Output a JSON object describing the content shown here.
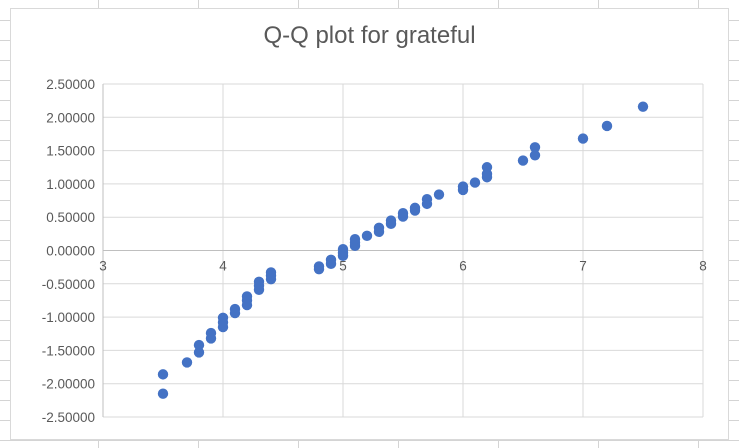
{
  "chart_data": {
    "type": "scatter",
    "title": "Q-Q plot for grateful",
    "xlabel": "",
    "ylabel": "",
    "xlim": [
      3,
      8
    ],
    "ylim": [
      -2.5,
      2.5
    ],
    "x_ticks": [
      3,
      4,
      5,
      6,
      7,
      8
    ],
    "y_ticks": [
      2.5,
      2.0,
      1.5,
      1.0,
      0.5,
      0.0,
      -0.5,
      -1.0,
      -1.5,
      -2.0,
      -2.5
    ],
    "y_tick_labels": [
      "2.50000",
      "2.00000",
      "1.50000",
      "1.00000",
      "0.50000",
      "0.00000",
      "-0.50000",
      "-1.00000",
      "-1.50000",
      "-2.00000",
      "-2.50000"
    ],
    "grid": "vertical and horizontal major gridlines",
    "legend": "none",
    "marker_color": "#4472c4",
    "series": [
      {
        "x": [
          3.5,
          3.5,
          3.7,
          3.8,
          3.8,
          3.9,
          3.9,
          4.0,
          4.0,
          4.0,
          4.1,
          4.1,
          4.2,
          4.2,
          4.2,
          4.3,
          4.3,
          4.3,
          4.4,
          4.4,
          4.4,
          4.8,
          4.8,
          4.9,
          4.9,
          5.0,
          5.0,
          5.0,
          5.1,
          5.1,
          5.1,
          5.2,
          5.3,
          5.3,
          5.4,
          5.4,
          5.5,
          5.5,
          5.6,
          5.6,
          5.7,
          5.7,
          5.8,
          6.0,
          6.0,
          6.1,
          6.2,
          6.2,
          6.2,
          6.5,
          6.6,
          6.6,
          7.0,
          7.2,
          7.5
        ],
        "y": [
          -2.15,
          -1.86,
          -1.68,
          -1.53,
          -1.42,
          -1.32,
          -1.24,
          -1.15,
          -1.08,
          -1.01,
          -0.94,
          -0.88,
          -0.82,
          -0.75,
          -0.69,
          -0.59,
          -0.53,
          -0.47,
          -0.43,
          -0.38,
          -0.33,
          -0.28,
          -0.24,
          -0.2,
          -0.14,
          -0.08,
          -0.03,
          0.02,
          0.07,
          0.12,
          0.17,
          0.22,
          0.28,
          0.34,
          0.4,
          0.45,
          0.51,
          0.56,
          0.6,
          0.64,
          0.7,
          0.77,
          0.84,
          0.91,
          0.96,
          1.02,
          1.1,
          1.15,
          1.25,
          1.35,
          1.43,
          1.55,
          1.68,
          1.87,
          2.16
        ]
      }
    ]
  }
}
